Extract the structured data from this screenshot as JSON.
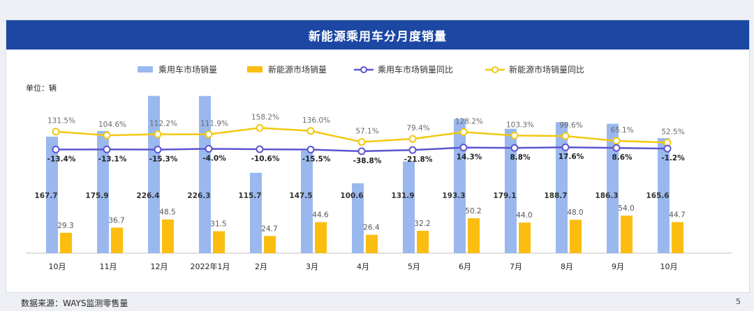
{
  "page": {
    "source_note": "数据来源：WAYS监测零售量",
    "page_number": "5"
  },
  "chart_data": {
    "type": "bar",
    "title": "新能源乘用车分月度销量",
    "unit_label": "单位：辆",
    "categories": [
      "10月",
      "11月",
      "12月",
      "2022年1月",
      "2月",
      "3月",
      "4月",
      "5月",
      "6月",
      "7月",
      "8月",
      "9月",
      "10月"
    ],
    "series": [
      {
        "name": "乘用车市场销量",
        "kind": "bar",
        "color": "#9ab8ee",
        "values": [
          167.7,
          175.9,
          226.4,
          226.3,
          115.7,
          147.5,
          100.6,
          131.9,
          193.3,
          179.1,
          188.7,
          186.3,
          165.6
        ],
        "labels": [
          "167.7",
          "175.9",
          "226.4",
          "226.3",
          "115.7",
          "147.5",
          "100.6",
          "131.9",
          "193.3",
          "179.1",
          "188.7",
          "186.3",
          "165.6"
        ]
      },
      {
        "name": "新能源市场销量",
        "kind": "bar",
        "color": "#fbbd0f",
        "values": [
          29.3,
          36.7,
          48.5,
          31.5,
          24.7,
          44.6,
          26.4,
          32.2,
          50.2,
          44.0,
          48.0,
          54.0,
          44.7
        ],
        "labels": [
          "29.3",
          "36.7",
          "48.5",
          "31.5",
          "24.7",
          "44.6",
          "26.4",
          "32.2",
          "50.2",
          "44.0",
          "48.0",
          "54.0",
          "44.7"
        ]
      },
      {
        "name": "乘用车市场销量同比",
        "kind": "line",
        "color": "#5b55d0",
        "values": [
          -13.4,
          -13.1,
          -15.3,
          -4.0,
          -10.6,
          -15.5,
          -38.8,
          -21.8,
          14.3,
          8.8,
          17.6,
          8.6,
          -1.2
        ],
        "labels": [
          "-13.4%",
          "-13.1%",
          "-15.3%",
          "-4.0%",
          "-10.6%",
          "-15.5%",
          "-38.8%",
          "-21.8%",
          "14.3%",
          "8.8%",
          "17.6%",
          "8.6%",
          "-1.2%"
        ]
      },
      {
        "name": "新能源市场销量同比",
        "kind": "line",
        "color": "#f2c811",
        "values": [
          131.5,
          104.6,
          112.2,
          111.9,
          158.2,
          136.0,
          57.1,
          79.4,
          128.2,
          103.3,
          99.6,
          65.1,
          52.5
        ],
        "labels": [
          "131.5%",
          "104.6%",
          "112.2%",
          "111.9%",
          "158.2%",
          "136.0%",
          "57.1%",
          "79.4%",
          "128.2%",
          "103.3%",
          "99.6%",
          "65.1%",
          "52.5%"
        ]
      }
    ],
    "bar_ylim": [
      0,
      235
    ],
    "legend_position": "top"
  }
}
